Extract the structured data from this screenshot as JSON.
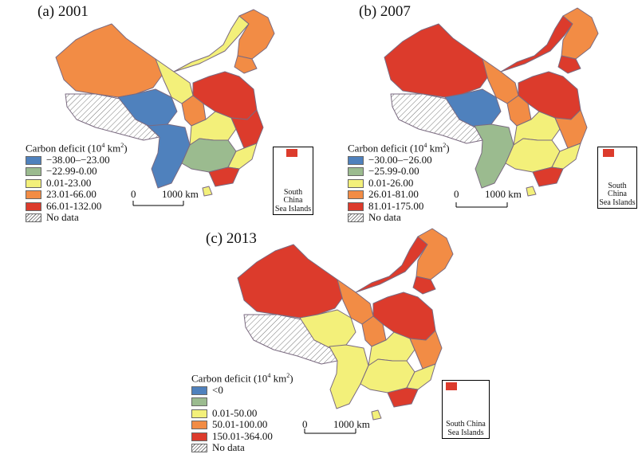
{
  "legend_title_prefix": "Carbon deficit (10",
  "legend_title_exp": "4",
  "legend_title_unit": " km",
  "legend_title_exp2": "2",
  "legend_title_suffix": ")",
  "scale_zero": "0",
  "scale_distance": "1000 km",
  "inset_label_line1": "South China",
  "inset_label_line2": "Sea Islands",
  "no_data_label": "No data",
  "colors": {
    "class1": "#4f81bd",
    "class2": "#9bbb8f",
    "class3": "#f3f07a",
    "class4": "#f28c45",
    "class5": "#dc3b2c",
    "outline": "#7a6a80"
  },
  "panels": [
    {
      "title": "(a) 2001",
      "legend": [
        "−38.00–−23.00",
        "−22.99-0.00",
        "0.01-23.00",
        "23.01-66.00",
        "66.01-132.00"
      ]
    },
    {
      "title": "(b) 2007",
      "legend": [
        "−30.00–−26.00",
        "−25.99-0.00",
        "0.01-26.00",
        "26.01-81.00",
        "81.01-175.00"
      ]
    },
    {
      "title": "(c) 2013",
      "legend": [
        "<0",
        "",
        "0.01-50.00",
        "50.01-100.00",
        "150.01-364.00"
      ]
    }
  ]
}
